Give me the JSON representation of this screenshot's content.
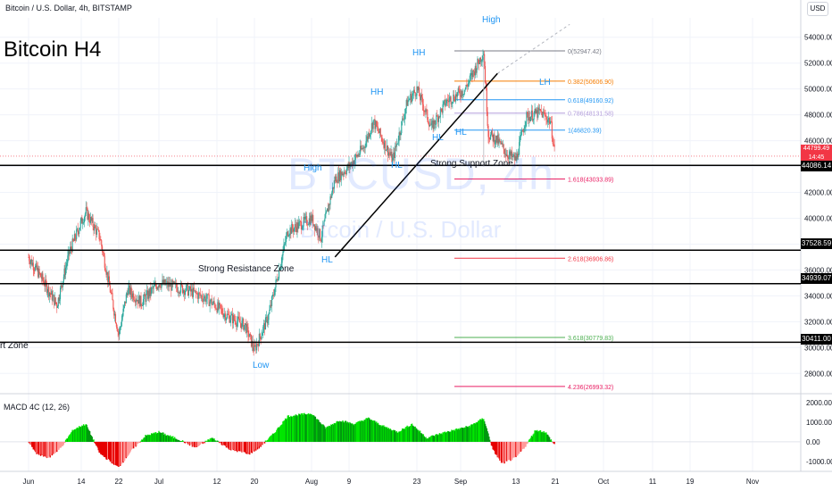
{
  "header": {
    "symbol_line": "Bitcoin / U.S. Dollar, 4h, BITSTAMP",
    "currency_button": "USD",
    "title": "Bitcoin H4"
  },
  "watermark": {
    "ticker": "BTCUSD, 4h",
    "name": "Bitcoin / U.S. Dollar"
  },
  "price_tags": {
    "current": {
      "price": "44799.49",
      "countdown": "14:45"
    },
    "levels": [
      "44086.14",
      "37528.59",
      "34939.07",
      "30411.00"
    ]
  },
  "annotations": {
    "high_top": "High",
    "hh1": "HH",
    "hh2": "HH",
    "lh": "LH",
    "high_left": "High",
    "hl_a": "HL",
    "hl_b": "HL",
    "hl_c": "HL",
    "hl_d": "HL",
    "low": "Low"
  },
  "zones": {
    "support": "Strong Support Zone",
    "resistance": "Strong Resistance Zone",
    "left_partial": "rt Zone"
  },
  "macd": {
    "label": "MACD 4C (12, 26)"
  },
  "colors": {
    "bull": "#26a69a",
    "bear": "#ef5350",
    "macd_up": "#00e600",
    "macd_down": "#e60000",
    "annotation_blue": "#2196f3",
    "current_price": "#f23645"
  },
  "chart_data": [
    {
      "type": "candlestick",
      "title": "Bitcoin / U.S. Dollar, 4h, BITSTAMP",
      "y_axis_ticks": [
        28000,
        30000,
        32000,
        34000,
        36000,
        38000,
        40000,
        42000,
        44000,
        46000,
        48000,
        50000,
        52000,
        54000
      ],
      "ylim": [
        26500,
        55500
      ],
      "x_axis_ticks": [
        "Jun",
        "14",
        "22",
        "Jul",
        "12",
        "20",
        "Aug",
        "9",
        "23",
        "Sep",
        "13",
        "21",
        "Oct",
        "11",
        "19",
        "Nov"
      ],
      "grid": true,
      "price_path_points": [
        [
          "Jun 1",
          37000
        ],
        [
          "Jun 4",
          35500
        ],
        [
          "Jun 8",
          33300
        ],
        [
          "Jun 11",
          37300
        ],
        [
          "Jun 15",
          40500
        ],
        [
          "Jun 18",
          38500
        ],
        [
          "Jun 22",
          31000
        ],
        [
          "Jun 24",
          34500
        ],
        [
          "Jun 27",
          33500
        ],
        [
          "Jul 1",
          35000
        ],
        [
          "Jul 6",
          34500
        ],
        [
          "Jul 10",
          33800
        ],
        [
          "Jul 14",
          32500
        ],
        [
          "Jul 18",
          31700
        ],
        [
          "Jul 20",
          29800
        ],
        [
          "Jul 23",
          32500
        ],
        [
          "Jul 27",
          39000
        ],
        [
          "Aug 1",
          40000
        ],
        [
          "Aug 3",
          38500
        ],
        [
          "Aug 6",
          43000
        ],
        [
          "Aug 9",
          44000
        ],
        [
          "Aug 12",
          45500
        ],
        [
          "Aug 14",
          47500
        ],
        [
          "Aug 18",
          44500
        ],
        [
          "Aug 21",
          49000
        ],
        [
          "Aug 23",
          50000
        ],
        [
          "Aug 26",
          47000
        ],
        [
          "Aug 29",
          49000
        ],
        [
          "Sep 2",
          50000
        ],
        [
          "Sep 6",
          52900
        ],
        [
          "Sep 7",
          46500
        ],
        [
          "Sep 9",
          46000
        ],
        [
          "Sep 11",
          45000
        ],
        [
          "Sep 13",
          44500
        ],
        [
          "Sep 15",
          47800
        ],
        [
          "Sep 18",
          48200
        ],
        [
          "Sep 20",
          47500
        ],
        [
          "Sep 21",
          44800
        ]
      ],
      "fibonacci_levels": [
        {
          "ratio": "0",
          "price": 52947.42,
          "label": "0(52947.42)"
        },
        {
          "ratio": "0.382",
          "price": 50606.9,
          "label": "0.382(50606.90)"
        },
        {
          "ratio": "0.618",
          "price": 49160.92,
          "label": "0.618(49160.92)"
        },
        {
          "ratio": "0.786",
          "price": 48131.58,
          "label": "0.786(48131.58)"
        },
        {
          "ratio": "1",
          "price": 46820.39,
          "label": "1(46820.39)"
        },
        {
          "ratio": "1.618",
          "price": 43033.89,
          "label": "1.618(43033.89)"
        },
        {
          "ratio": "2.618",
          "price": 36906.86,
          "label": "2.618(36906.86)"
        },
        {
          "ratio": "3.618",
          "price": 30779.83,
          "label": "3.618(30779.83)"
        },
        {
          "ratio": "4.236",
          "price": 26993.32,
          "label": "4.236(26993.32)"
        }
      ],
      "horizontal_levels": [
        44086.14,
        37528.59,
        34939.07,
        30411.0
      ],
      "current_price": 44799.49
    },
    {
      "type": "histogram",
      "title": "MACD 4C (12, 26)",
      "y_axis_ticks": [
        2000,
        1000,
        0,
        -1000
      ],
      "ylim": [
        -1500,
        2400
      ],
      "x_axis_ticks": [
        "Jun",
        "14",
        "22",
        "Jul",
        "12",
        "20",
        "Aug",
        "9",
        "23",
        "Sep",
        "13",
        "21",
        "Oct",
        "11",
        "19",
        "Nov"
      ],
      "path_points": [
        [
          "Jun 1",
          0
        ],
        [
          "Jun 3",
          -600
        ],
        [
          "Jun 6",
          -800
        ],
        [
          "Jun 9",
          -300
        ],
        [
          "Jun 12",
          600
        ],
        [
          "Jun 15",
          900
        ],
        [
          "Jun 18",
          -600
        ],
        [
          "Jun 22",
          -1300
        ],
        [
          "Jun 25",
          -400
        ],
        [
          "Jun 28",
          300
        ],
        [
          "Jul 1",
          500
        ],
        [
          "Jul 5",
          100
        ],
        [
          "Jul 8",
          -300
        ],
        [
          "Jul 11",
          200
        ],
        [
          "Jul 15",
          -400
        ],
        [
          "Jul 19",
          -600
        ],
        [
          "Jul 21",
          -300
        ],
        [
          "Jul 24",
          400
        ],
        [
          "Jul 27",
          1300
        ],
        [
          "Aug 1",
          1450
        ],
        [
          "Aug 4",
          700
        ],
        [
          "Aug 7",
          1100
        ],
        [
          "Aug 10",
          900
        ],
        [
          "Aug 13",
          1200
        ],
        [
          "Aug 16",
          800
        ],
        [
          "Aug 19",
          500
        ],
        [
          "Aug 22",
          900
        ],
        [
          "Aug 25",
          200
        ],
        [
          "Aug 29",
          500
        ],
        [
          "Sep 3",
          800
        ],
        [
          "Sep 6",
          1200
        ],
        [
          "Sep 8",
          -400
        ],
        [
          "Sep 10",
          -1100
        ],
        [
          "Sep 13",
          -800
        ],
        [
          "Sep 15",
          -200
        ],
        [
          "Sep 17",
          600
        ],
        [
          "Sep 19",
          500
        ],
        [
          "Sep 21",
          -200
        ]
      ]
    }
  ]
}
